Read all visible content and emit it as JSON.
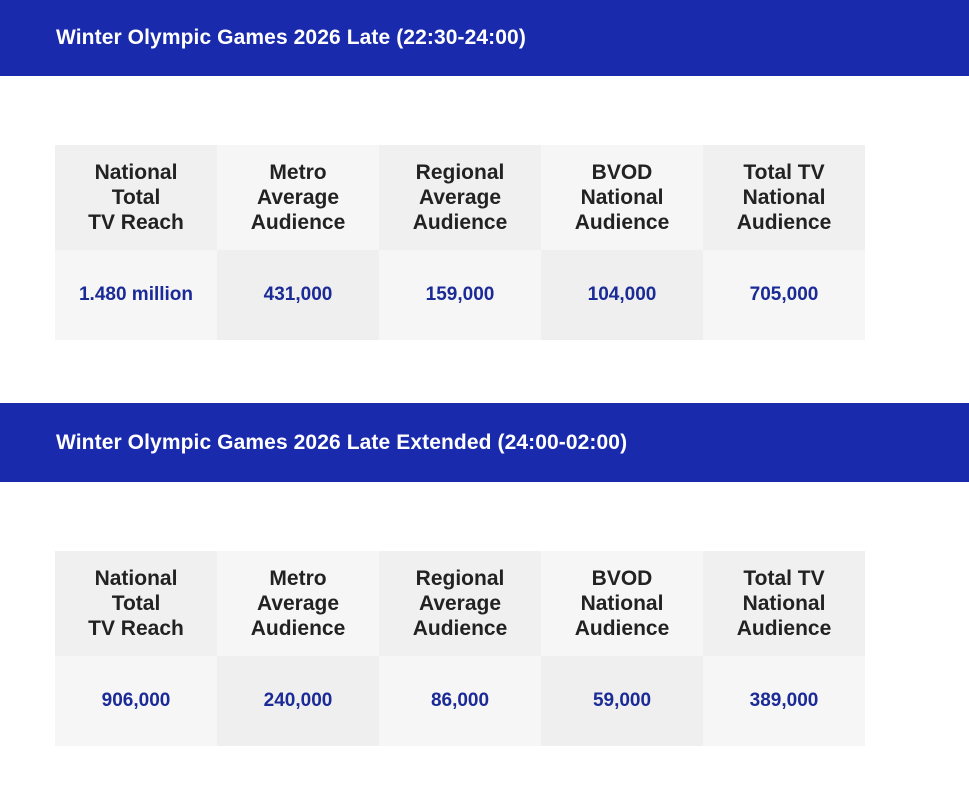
{
  "sections": [
    {
      "title": "Winter Olympic Games 2026 Late (22:30-24:00)",
      "headers": [
        [
          "National",
          "Total",
          "TV Reach"
        ],
        [
          "Metro",
          "Average",
          "Audience"
        ],
        [
          "Regional",
          "Average",
          "Audience"
        ],
        [
          "BVOD",
          "National",
          "Audience"
        ],
        [
          "Total TV",
          "National",
          "Audience"
        ]
      ],
      "values": [
        "1.480 million",
        "431,000",
        "159,000",
        "104,000",
        "705,000"
      ]
    },
    {
      "title": "Winter Olympic Games 2026 Late Extended (24:00-02:00)",
      "headers": [
        [
          "National",
          "Total",
          "TV Reach"
        ],
        [
          "Metro",
          "Average",
          "Audience"
        ],
        [
          "Regional",
          "Average",
          "Audience"
        ],
        [
          "BVOD",
          "National",
          "Audience"
        ],
        [
          "Total TV",
          "National",
          "Audience"
        ]
      ],
      "values": [
        "906,000",
        "240,000",
        "86,000",
        "59,000",
        "389,000"
      ]
    }
  ],
  "colors": {
    "banner": "#1a2aad",
    "value_text": "#1a2a96",
    "header_text": "#222222"
  }
}
